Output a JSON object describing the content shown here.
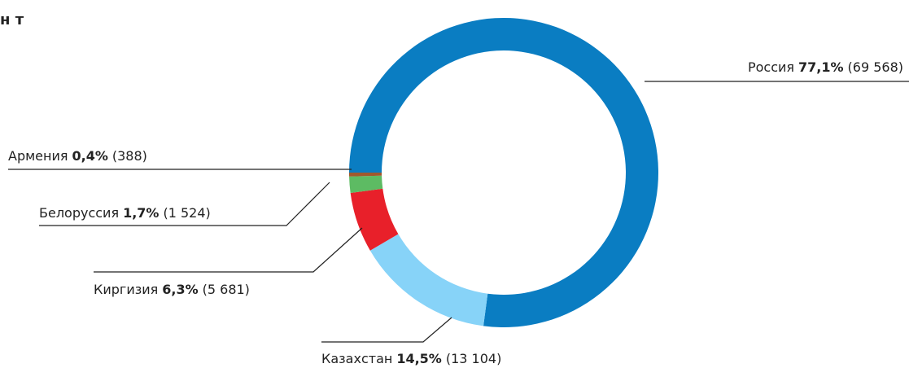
{
  "chart_data": {
    "type": "donut",
    "title": "н т",
    "categories": [
      "Россия",
      "Казахстан",
      "Киргизия",
      "Белоруссия",
      "Армения"
    ],
    "values": [
      77.1,
      14.5,
      6.3,
      1.7,
      0.4
    ],
    "value_labels": [
      "77,1%",
      "14,5%",
      "6,3%",
      "1,7%",
      "0,4%"
    ],
    "counts": [
      69568,
      13104,
      5681,
      1524,
      388
    ],
    "count_labels": [
      "(69 568)",
      "(13 104)",
      "(5 681)",
      "(1 524)",
      "(388)"
    ],
    "colors": [
      "#0a7dc2",
      "#87d3f8",
      "#e8202a",
      "#5dbb63",
      "#a0592d"
    ]
  }
}
